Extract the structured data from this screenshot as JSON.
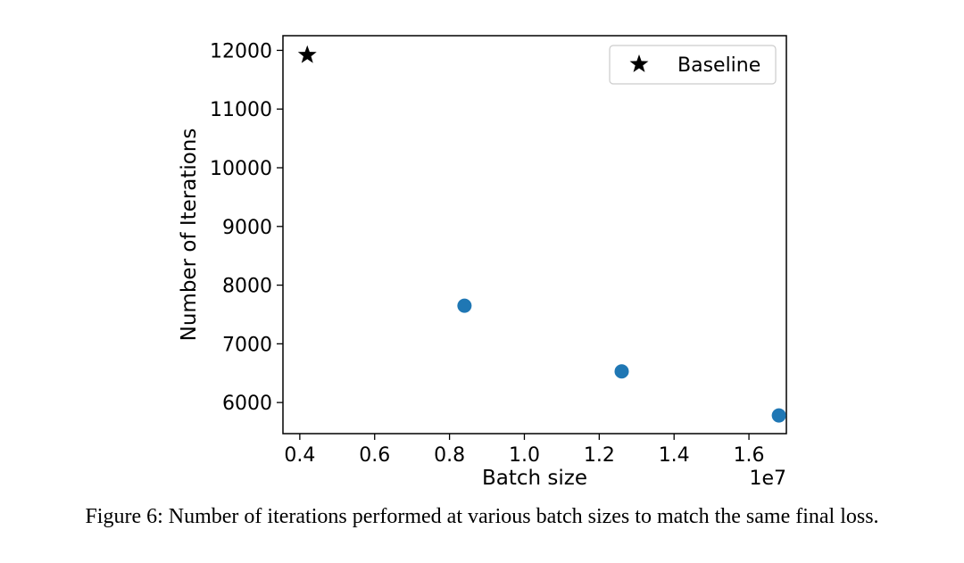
{
  "caption": "Figure 6: Number of iterations performed at various batch sizes to match the same final loss.",
  "chart_data": {
    "type": "scatter",
    "title": "",
    "xlabel": "Batch size",
    "ylabel": "Number of Iterations",
    "x_offset_text": "1e7",
    "xlim": [
      0.355,
      1.7
    ],
    "ylim": [
      5470,
      12250
    ],
    "x_ticks": [
      0.4,
      0.6,
      0.8,
      1.0,
      1.2,
      1.4,
      1.6
    ],
    "x_tick_labels": [
      "0.4",
      "0.6",
      "0.8",
      "1.0",
      "1.2",
      "1.4",
      "1.6"
    ],
    "y_ticks": [
      6000,
      7000,
      8000,
      9000,
      10000,
      11000,
      12000
    ],
    "y_tick_labels": [
      "6000",
      "7000",
      "8000",
      "9000",
      "10000",
      "11000",
      "12000"
    ],
    "grid": false,
    "legend": {
      "position": "top-right",
      "entries": [
        {
          "label": "Baseline",
          "marker": "star",
          "color": "#000000"
        }
      ]
    },
    "series": [
      {
        "name": "Baseline",
        "marker": "star",
        "color": "#000000",
        "x": [
          0.42
        ],
        "y": [
          11920
        ]
      },
      {
        "marker": "circle",
        "color": "#1f77b4",
        "x": [
          0.84,
          1.26,
          1.68
        ],
        "y": [
          7650,
          6530,
          5780
        ]
      }
    ]
  }
}
